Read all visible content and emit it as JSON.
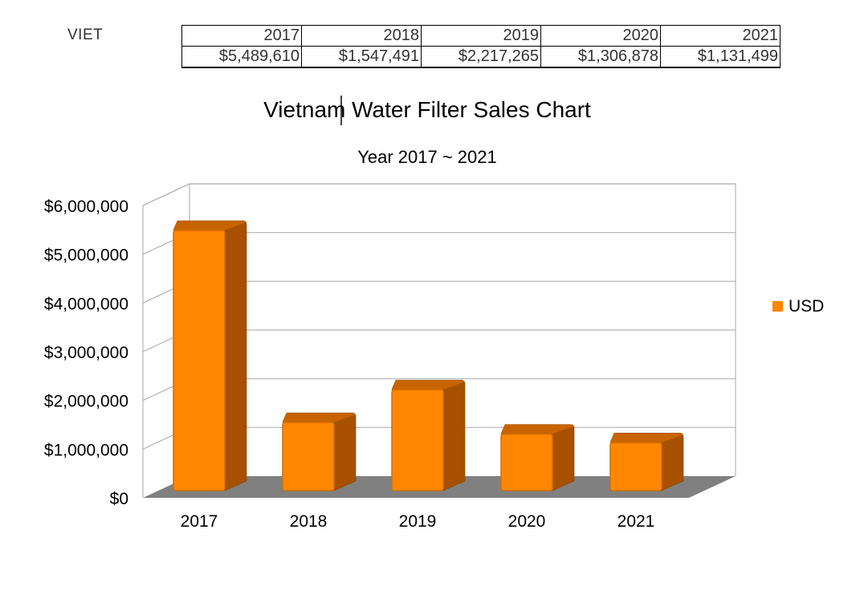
{
  "table": {
    "row_label": "VIET",
    "years": [
      "2017",
      "2018",
      "2019",
      "2020",
      "2021"
    ],
    "amounts": [
      "$5,489,610",
      "$1,547,491",
      "$2,217,265",
      "$1,306,878",
      "$1,131,499"
    ]
  },
  "chart_data": {
    "type": "bar",
    "title": "Vietnam Water Filter Sales Chart",
    "subtitle": "Year 2017 ~ 2021",
    "categories": [
      "2017",
      "2018",
      "2019",
      "2020",
      "2021"
    ],
    "series": [
      {
        "name": "USD",
        "values": [
          5489610,
          1547491,
          2217265,
          1306878,
          1131499
        ]
      }
    ],
    "ylim": [
      0,
      6000000
    ],
    "yticks": [
      0,
      1000000,
      2000000,
      3000000,
      4000000,
      5000000,
      6000000
    ],
    "ytick_labels": [
      "$0",
      "$1,000,000",
      "$2,000,000",
      "$3,000,000",
      "$4,000,000",
      "$5,000,000",
      "$6,000,000"
    ],
    "grid": true,
    "style": "3d",
    "legend_position": "right",
    "colors": {
      "bar_front": "#ff8600",
      "bar_side": "#a65000",
      "bar_top": "#c86400",
      "floor": "#808080",
      "grid": "#b3b3b3"
    }
  }
}
